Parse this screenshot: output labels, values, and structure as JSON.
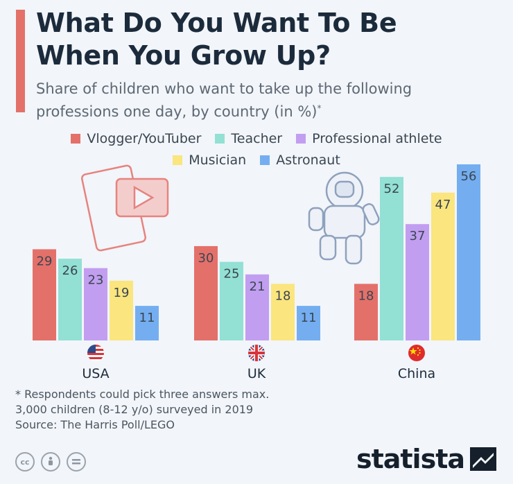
{
  "header": {
    "title_line1": "What Do You Want To Be",
    "title_line2": "When You Grow Up?",
    "subtitle_line1": "Share of children who want to take up the following",
    "subtitle_line2": "professions one day, by country (in %)",
    "subtitle_mark": "*"
  },
  "chart_data": {
    "type": "bar",
    "categories": [
      "USA",
      "UK",
      "China"
    ],
    "series": [
      {
        "name": "Vlogger/YouTuber",
        "color": "#e4706a",
        "values": [
          29,
          30,
          18
        ]
      },
      {
        "name": "Teacher",
        "color": "#93e0d4",
        "values": [
          26,
          25,
          52
        ]
      },
      {
        "name": "Professional athlete",
        "color": "#c19ef0",
        "values": [
          23,
          21,
          37
        ]
      },
      {
        "name": "Musician",
        "color": "#fbe57e",
        "values": [
          19,
          18,
          47
        ]
      },
      {
        "name": "Astronaut",
        "color": "#74aef0",
        "values": [
          11,
          11,
          56
        ]
      }
    ],
    "ylim": [
      0,
      56
    ],
    "grid": false,
    "legend": "top"
  },
  "footnote": {
    "line1": "* Respondents could pick three answers max.",
    "line2": "3,000 children (8-12 y/o) surveyed in 2019",
    "line3": "Source: The Harris Poll/LEGO"
  },
  "footer": {
    "brand": "statista",
    "cc_icons": [
      "cc-icon",
      "by-icon",
      "nd-icon"
    ]
  }
}
